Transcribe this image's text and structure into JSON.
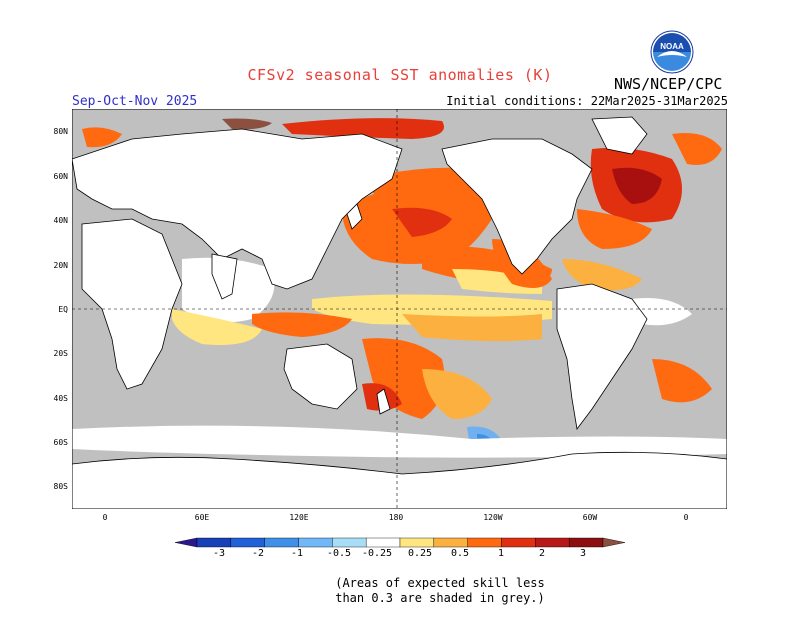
{
  "header": {
    "title": "CFSv2 seasonal SST anomalies (K)",
    "agency": "NWS/NCEP/CPC",
    "season": "Sep-Oct-Nov 2025",
    "initial_conditions": "Initial conditions: 22Mar2025-31Mar2025",
    "logo_text": "NOAA"
  },
  "map": {
    "lat_labels": [
      "80N",
      "60N",
      "40N",
      "20N",
      "EQ",
      "20S",
      "40S",
      "60S",
      "80S"
    ],
    "lon_labels": [
      "0",
      "60E",
      "120E",
      "180",
      "120W",
      "60W",
      "0"
    ],
    "colors": {
      "skill_mask_grey": "#c0c0c0",
      "land": "#ffffff",
      "neutral": "#ffffff",
      "pos_025": "#ffe680",
      "pos_05": "#fbb040",
      "pos_1": "#ff6a10",
      "pos_2": "#e03010",
      "pos_3": "#a81010",
      "pos_3plus": "#8c5040",
      "neg_025": "#a8d8f8",
      "neg_05": "#70b0f0",
      "neg_1": "#4090e0",
      "neg_2": "#2060c8",
      "neg_3": "#1030a0"
    }
  },
  "colorbar": {
    "labels": [
      "-3",
      "-2",
      "-1",
      "-0.5",
      "-0.25",
      "0.25",
      "0.5",
      "1",
      "2",
      "3"
    ],
    "colors": [
      "#2a1890",
      "#1840b8",
      "#2060d8",
      "#4090e8",
      "#70b8f8",
      "#a8ddf8",
      "#ffffff",
      "#ffe680",
      "#fbb040",
      "#ff6a10",
      "#e03010",
      "#b81818",
      "#8c1010",
      "#8c5040"
    ]
  },
  "footnote": {
    "line1": "(Areas of expected skill less",
    "line2": "than 0.3 are shaded in grey.)"
  }
}
